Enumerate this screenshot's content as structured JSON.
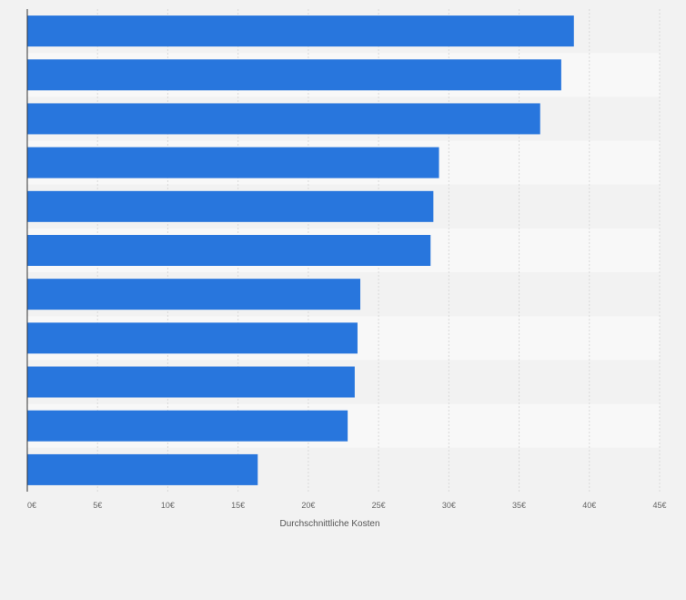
{
  "chart_data": {
    "type": "bar",
    "orientation": "horizontal",
    "categories": [
      "",
      "",
      "",
      "",
      "",
      "",
      "",
      "",
      "",
      "",
      ""
    ],
    "values": [
      38.9,
      38.0,
      36.5,
      29.3,
      28.9,
      28.7,
      23.7,
      23.5,
      23.3,
      22.8,
      16.4
    ],
    "xlabel": "Durchschnittliche Kosten",
    "ylabel": "",
    "xlim": [
      0,
      45
    ],
    "xticks": [
      0,
      5,
      10,
      15,
      20,
      25,
      30,
      35,
      40,
      45
    ],
    "xtick_labels": [
      "0€",
      "5€",
      "10€",
      "15€",
      "20€",
      "25€",
      "30€",
      "35€",
      "40€",
      "45€"
    ],
    "grid": true,
    "colors": {
      "bar": "#2876dd",
      "band_odd": "#f2f2f2",
      "band_even": "#f8f8f8",
      "gridline": "#d9d9d9",
      "axis": "#333333"
    }
  }
}
